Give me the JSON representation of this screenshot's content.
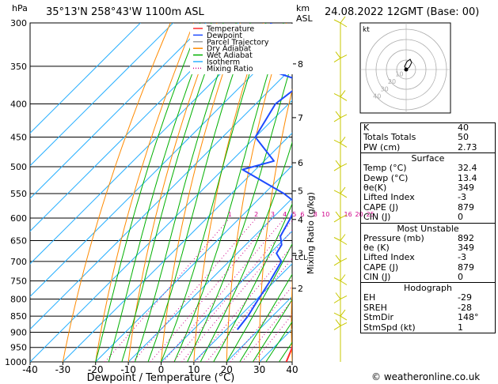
{
  "header": {
    "pressure_unit": "hPa",
    "location": "35°13'N  258°43'W  1100m  ASL",
    "alt_unit_km": "km",
    "alt_unit_asl": "ASL",
    "datetime": "24.08.2022  12GMT  (Base: 00)"
  },
  "legend": [
    {
      "label": "Temperature",
      "color": "#ff2a2a"
    },
    {
      "label": "Dewpoint",
      "color": "#1e4bff"
    },
    {
      "label": "Parcel Trajectory",
      "color": "#a0a0a0"
    },
    {
      "label": "Dry Adiabat",
      "color": "#ff8a00"
    },
    {
      "label": "Wet Adiabat",
      "color": "#00b000"
    },
    {
      "label": "Isotherm",
      "color": "#2ab0ff"
    },
    {
      "label": "Mixing Ratio",
      "color": "#d0008a"
    }
  ],
  "colors": {
    "temperature": "#ff2a2a",
    "dewpoint": "#1e4bff",
    "parcel": "#a0a0a0",
    "dry_adiabat": "#ff8a00",
    "wet_adiabat": "#00b000",
    "isotherm": "#2ab0ff",
    "mixing_ratio": "#d0008a",
    "wind": "#c8c800"
  },
  "chart_data": {
    "type": "line",
    "title": "",
    "xlabel": "Dewpoint / Temperature (°C)",
    "ylabel": "hPa",
    "xlim": [
      -40,
      40
    ],
    "x_ticks": [
      -40,
      -30,
      -20,
      -10,
      0,
      10,
      20,
      30,
      40
    ],
    "y_scale": "log",
    "ylim": [
      1000,
      300
    ],
    "y_ticks": [
      300,
      350,
      400,
      450,
      500,
      550,
      600,
      650,
      700,
      750,
      800,
      850,
      900,
      950,
      1000
    ],
    "km_ticks": [
      {
        "p": 347,
        "label": "8"
      },
      {
        "p": 420,
        "label": "7"
      },
      {
        "p": 493,
        "label": "6"
      },
      {
        "p": 545,
        "label": "5"
      },
      {
        "p": 603,
        "label": "4"
      },
      {
        "p": 680,
        "label": "3"
      },
      {
        "p": 770,
        "label": "2"
      }
    ],
    "lcl": {
      "p": 685,
      "label": "LCL"
    },
    "mixing_ratio_labels": [
      "1",
      "2",
      "3",
      "4",
      "5",
      "6",
      "8",
      "10",
      "16",
      "20",
      "25"
    ],
    "mixing_ratio_axis_label": "Mixing Ratio (g/kg)",
    "series": [
      {
        "name": "Temperature",
        "points": [
          [
            1000,
            38.2
          ],
          [
            892,
            32.4
          ],
          [
            850,
            28.5
          ],
          [
            800,
            23.5
          ],
          [
            750,
            18.0
          ],
          [
            700,
            12.5
          ],
          [
            650,
            9.5
          ],
          [
            600,
            4.5
          ],
          [
            550,
            -1.5
          ],
          [
            500,
            -8.5
          ],
          [
            450,
            -14.5
          ],
          [
            400,
            -24.0
          ],
          [
            350,
            -34.0
          ],
          [
            300,
            -43.0
          ]
        ]
      },
      {
        "name": "Dewpoint",
        "points": [
          [
            892,
            13.4
          ],
          [
            850,
            12.5
          ],
          [
            800,
            10.5
          ],
          [
            750,
            8.5
          ],
          [
            700,
            6.0
          ],
          [
            680,
            2.0
          ],
          [
            660,
            1.0
          ],
          [
            640,
            -2.0
          ],
          [
            600,
            -4.5
          ],
          [
            570,
            -7.0
          ],
          [
            550,
            -14.0
          ],
          [
            505,
            -34.0
          ],
          [
            490,
            -27.0
          ],
          [
            450,
            -40.0
          ],
          [
            400,
            -44.0
          ],
          [
            370,
            -42.0
          ],
          [
            355,
            -56.0
          ],
          [
            335,
            -52.0
          ],
          [
            325,
            -68.0
          ],
          [
            300,
            -70.0
          ]
        ]
      },
      {
        "name": "Parcel Trajectory",
        "points": [
          [
            892,
            32.4
          ],
          [
            850,
            28.0
          ],
          [
            800,
            22.5
          ],
          [
            750,
            17.0
          ],
          [
            700,
            11.5
          ],
          [
            685,
            10.5
          ],
          [
            650,
            8.5
          ],
          [
            600,
            5.5
          ],
          [
            550,
            2.0
          ],
          [
            500,
            -2.0
          ],
          [
            450,
            -7.5
          ],
          [
            400,
            -14.0
          ],
          [
            350,
            -23.0
          ],
          [
            300,
            -33.0
          ]
        ]
      }
    ]
  },
  "stats": {
    "rows": [
      {
        "label": "K",
        "value": "40"
      },
      {
        "label": "Totals Totals",
        "value": "50"
      },
      {
        "label": "PW (cm)",
        "value": "2.73"
      }
    ],
    "surface": {
      "title": "Surface",
      "rows": [
        {
          "label": "Temp (°C)",
          "value": "32.4"
        },
        {
          "label": "Dewp (°C)",
          "value": "13.4"
        },
        {
          "label": "θe(K)",
          "value": "349"
        },
        {
          "label": "Lifted Index",
          "value": "-3"
        },
        {
          "label": "CAPE (J)",
          "value": "879"
        },
        {
          "label": "CIN (J)",
          "value": "0"
        }
      ]
    },
    "most_unstable": {
      "title": "Most Unstable",
      "rows": [
        {
          "label": "Pressure (mb)",
          "value": "892"
        },
        {
          "label": "θe (K)",
          "value": "349"
        },
        {
          "label": "Lifted Index",
          "value": "-3"
        },
        {
          "label": "CAPE (J)",
          "value": "879"
        },
        {
          "label": "CIN (J)",
          "value": "0"
        }
      ]
    },
    "hodograph": {
      "title": "Hodograph",
      "rows": [
        {
          "label": "EH",
          "value": "-29"
        },
        {
          "label": "SREH",
          "value": "-28"
        },
        {
          "label": "StmDir",
          "value": "148°"
        },
        {
          "label": "StmSpd (kt)",
          "value": "1"
        }
      ]
    }
  },
  "hodo": {
    "label": "kt",
    "ring_labels": [
      "10",
      "20",
      "30",
      "40"
    ]
  },
  "credit": "© weatheronline.co.uk"
}
